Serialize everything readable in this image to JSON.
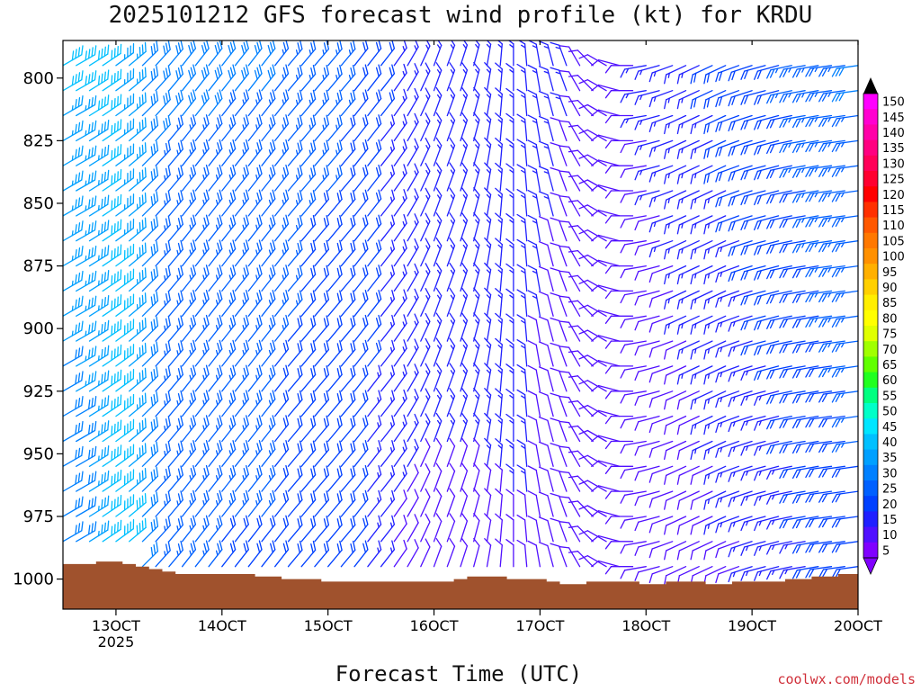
{
  "chart_data": {
    "type": "wind-profile",
    "title": "2025101212 GFS forecast wind profile (kt) for KRDU",
    "xlabel": "Forecast Time (UTC)",
    "ylabel": "",
    "credit": "coolwx.com/models",
    "x_range": [
      "12OCT 12Z",
      "20OCT 00Z"
    ],
    "x_ticks": [
      "13OCT",
      "14OCT",
      "15OCT",
      "16OCT",
      "17OCT",
      "18OCT",
      "19OCT",
      "20OCT"
    ],
    "x_year_label": "2025",
    "y_range": [
      1012,
      785
    ],
    "y_scale": "pressure (hPa), increasing downward",
    "y_ticks": [
      800,
      825,
      850,
      875,
      900,
      925,
      950,
      975,
      1000
    ],
    "levels": [
      795,
      805,
      815,
      825,
      835,
      845,
      855,
      865,
      875,
      885,
      895,
      905,
      915,
      925,
      935,
      945,
      955,
      965,
      975,
      985,
      995
    ],
    "interval_hours": 3,
    "wind_direction_from_deg_by_time": [
      60,
      60,
      58,
      56,
      54,
      50,
      45,
      42,
      40,
      38,
      38,
      38,
      38,
      38,
      38,
      38,
      38,
      40,
      40,
      40,
      40,
      40,
      38,
      38,
      38,
      35,
      30,
      25,
      20,
      20,
      18,
      15,
      10,
      5,
      360,
      355,
      350,
      345,
      340,
      330,
      315,
      300,
      285,
      270,
      260,
      255,
      250,
      245,
      245,
      245,
      245,
      250,
      252,
      255,
      255,
      258,
      260,
      260,
      262,
      262,
      262
    ],
    "wind_speed_kt_top_by_time": [
      38,
      38,
      38,
      38,
      36,
      34,
      30,
      28,
      28,
      28,
      28,
      28,
      28,
      28,
      28,
      28,
      26,
      25,
      24,
      24,
      24,
      23,
      22,
      20,
      18,
      16,
      15,
      14,
      14,
      14,
      14,
      14,
      15,
      15,
      16,
      16,
      15,
      14,
      13,
      12,
      12,
      12,
      12,
      12,
      13,
      14,
      15,
      16,
      17,
      18,
      19,
      20,
      21,
      22,
      22,
      23,
      24,
      25,
      26,
      27,
      28
    ],
    "wind_speed_kt_bottom_by_time": [
      28,
      30,
      34,
      38,
      40,
      38,
      30,
      25,
      24,
      24,
      24,
      24,
      22,
      22,
      22,
      22,
      20,
      20,
      19,
      18,
      18,
      18,
      18,
      16,
      14,
      12,
      12,
      12,
      12,
      12,
      12,
      12,
      12,
      12,
      12,
      12,
      10,
      9,
      9,
      10,
      10,
      10,
      9,
      9,
      8,
      8,
      8,
      9,
      10,
      11,
      12,
      12,
      13,
      14,
      15,
      16,
      17,
      18,
      19,
      20,
      21
    ],
    "surface_pressure_hpa_by_time": [
      994,
      994,
      994,
      993,
      993,
      994,
      995,
      996,
      997,
      998,
      998,
      998,
      998,
      998,
      998,
      999,
      999,
      1000,
      1000,
      1000,
      1001,
      1001,
      1001,
      1001,
      1001,
      1001,
      1001,
      1001,
      1001,
      1001,
      1000,
      999,
      999,
      999,
      1000,
      1000,
      1000,
      1001,
      1002,
      1002,
      1001,
      1001,
      1001,
      1001,
      1002,
      1002,
      1001,
      1001,
      1001,
      1002,
      1002,
      1001,
      1001,
      1001,
      1001,
      1000,
      1000,
      999,
      999,
      998,
      998
    ],
    "color_scale": {
      "labels": [
        "150",
        "145",
        "140",
        "135",
        "130",
        "125",
        "120",
        "115",
        "110",
        "105",
        "100",
        "95",
        "90",
        "85",
        "80",
        "75",
        "70",
        "65",
        "60",
        "55",
        "50",
        "45",
        "40",
        "35",
        "30",
        "25",
        "20",
        "15",
        "10",
        "5"
      ],
      "colors": [
        "#ff00ff",
        "#ff00d0",
        "#ff00a8",
        "#ff0080",
        "#ff0058",
        "#ff0030",
        "#ff0000",
        "#ff3000",
        "#ff5800",
        "#ff7800",
        "#ff9000",
        "#ffb000",
        "#ffd000",
        "#ffee00",
        "#ffff00",
        "#e0ff00",
        "#a0ff00",
        "#60ff00",
        "#20ff20",
        "#00ff80",
        "#00ffc8",
        "#00e6ff",
        "#00c0ff",
        "#00a0ff",
        "#0080ff",
        "#0060ff",
        "#0040ff",
        "#2020ff",
        "#5010ff",
        "#8000ff"
      ]
    },
    "terrain_color": "#a0522d",
    "grid": false,
    "legend_placement": "right"
  }
}
